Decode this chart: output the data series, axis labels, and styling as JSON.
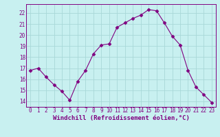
{
  "x": [
    0,
    1,
    2,
    3,
    4,
    5,
    6,
    7,
    8,
    9,
    10,
    11,
    12,
    13,
    14,
    15,
    16,
    17,
    18,
    19,
    20,
    21,
    22,
    23
  ],
  "y": [
    16.8,
    17.0,
    16.2,
    15.5,
    14.9,
    14.1,
    15.8,
    16.8,
    18.3,
    19.1,
    19.2,
    20.7,
    21.1,
    21.5,
    21.8,
    22.3,
    22.2,
    21.1,
    19.9,
    19.1,
    16.8,
    15.3,
    14.6,
    13.9
  ],
  "line_color": "#800080",
  "marker": "D",
  "marker_size": 2.5,
  "background_color": "#c8f0f0",
  "grid_color": "#a8d8d8",
  "xlabel": "Windchill (Refroidissement éolien,°C)",
  "ylim": [
    13.5,
    22.8
  ],
  "xlim": [
    -0.5,
    23.5
  ],
  "yticks": [
    14,
    15,
    16,
    17,
    18,
    19,
    20,
    21,
    22
  ],
  "xticks": [
    0,
    1,
    2,
    3,
    4,
    5,
    6,
    7,
    8,
    9,
    10,
    11,
    12,
    13,
    14,
    15,
    16,
    17,
    18,
    19,
    20,
    21,
    22,
    23
  ],
  "font_color": "#800080",
  "tick_font_size": 5.5,
  "label_font_size": 6.5
}
